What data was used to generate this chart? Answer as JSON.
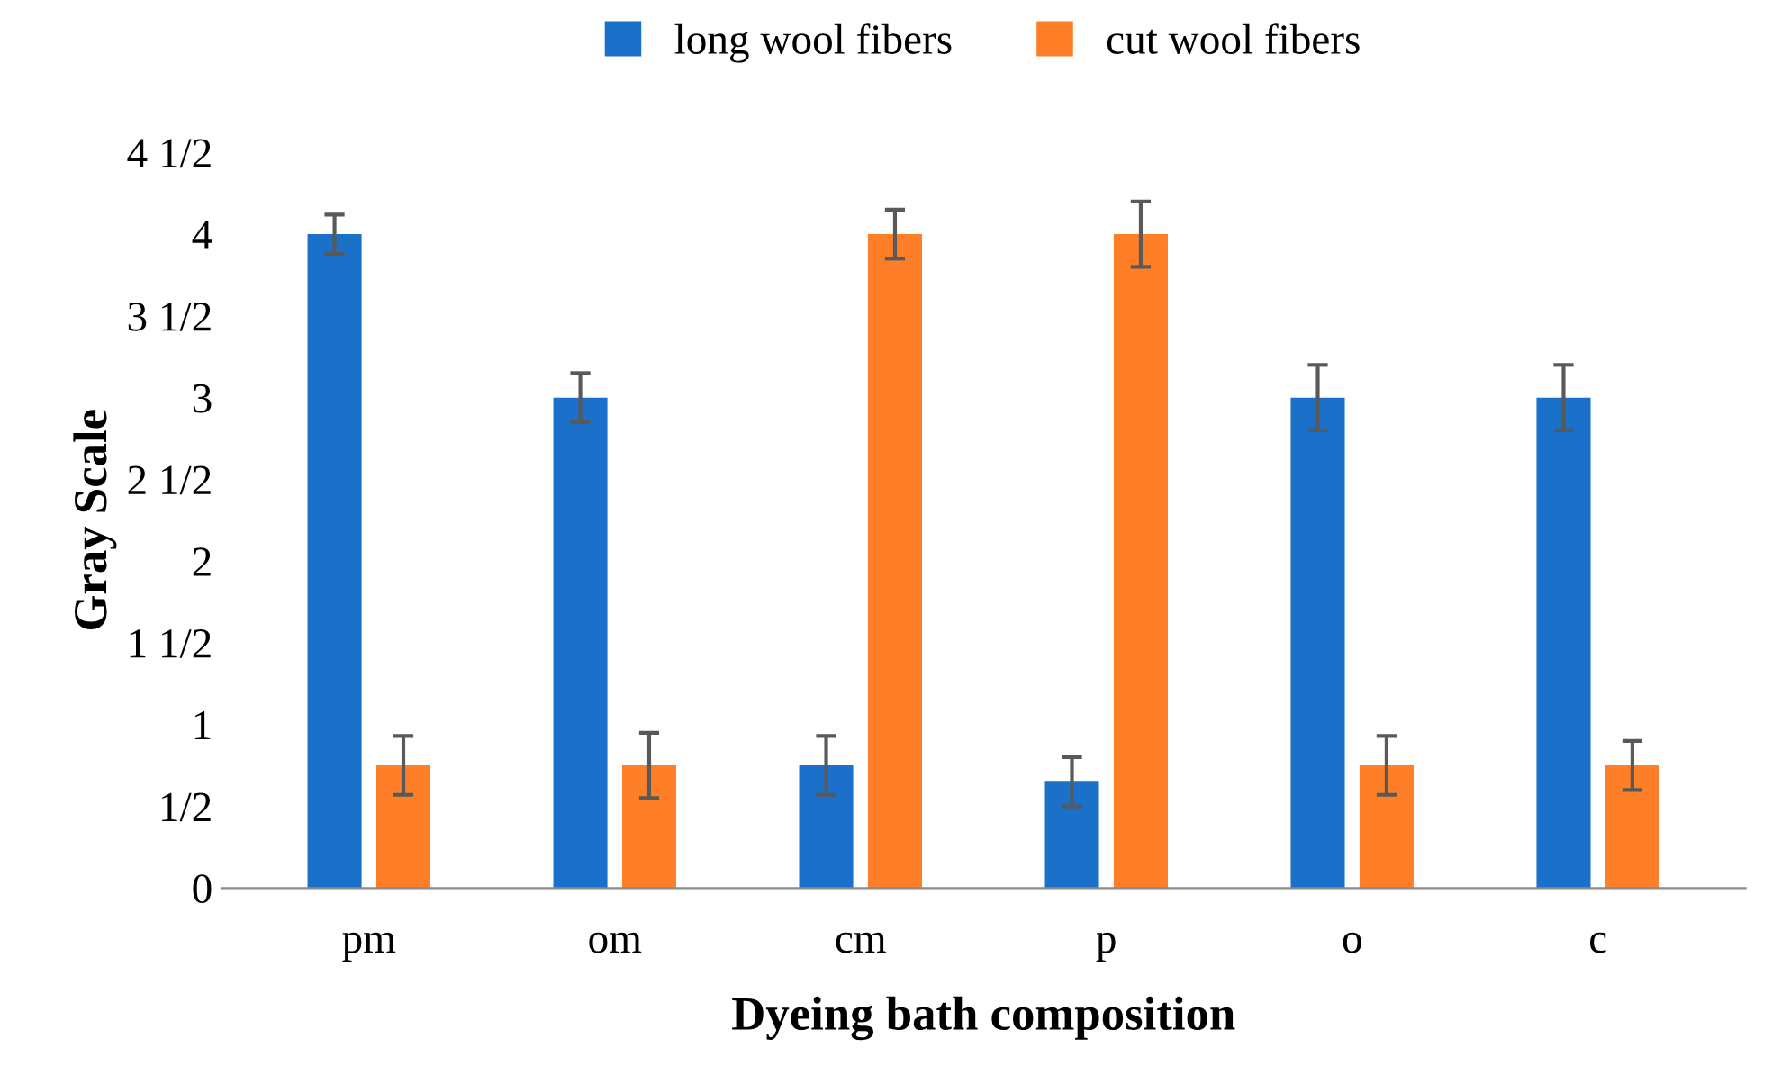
{
  "chart_data": {
    "type": "bar",
    "xlabel": "Dyeing bath composition",
    "ylabel": "Gray Scale",
    "categories": [
      "pm",
      "om",
      "cm",
      "p",
      "o",
      "c"
    ],
    "series": [
      {
        "name": "long wool fibers",
        "color": "#1b71c9",
        "values": [
          4,
          3,
          0.75,
          0.65,
          3,
          3
        ],
        "errors": [
          0.12,
          0.15,
          0.18,
          0.15,
          0.2,
          0.2
        ]
      },
      {
        "name": "cut wool fibers",
        "color": "#fe7f27",
        "values": [
          0.75,
          0.75,
          4,
          4,
          0.75,
          0.75
        ],
        "errors": [
          0.18,
          0.2,
          0.15,
          0.2,
          0.18,
          0.15
        ]
      }
    ],
    "ylim": [
      0,
      4.5
    ],
    "yticks": [
      0,
      {
        "value": 0.5,
        "label": "1/2"
      },
      1,
      {
        "value": 1.5,
        "label": "1 1/2"
      },
      2,
      {
        "value": 2.5,
        "label": "2 1/2"
      },
      3,
      {
        "value": 3.5,
        "label": "3 1/2"
      },
      4,
      {
        "value": 4.5,
        "label": "4 1/2"
      }
    ],
    "grid": false,
    "legend": "top"
  }
}
